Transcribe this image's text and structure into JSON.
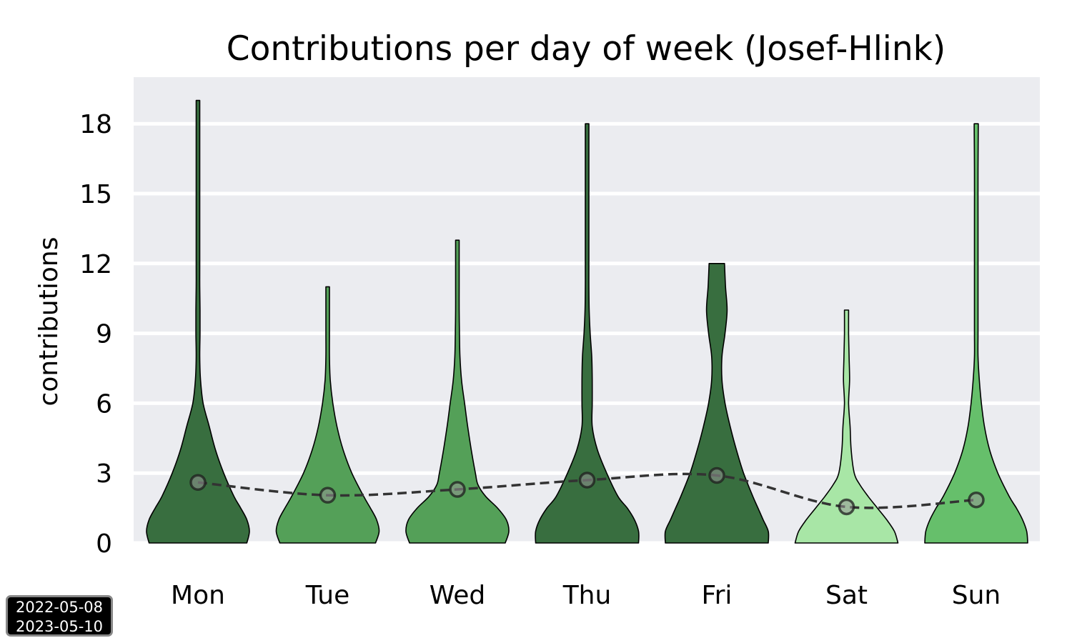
{
  "chart_data": {
    "type": "violin",
    "title": "Contributions per day of week (Josef-Hlink)",
    "xlabel": "",
    "ylabel": "contributions",
    "categories": [
      "Mon",
      "Tue",
      "Wed",
      "Thu",
      "Fri",
      "Sat",
      "Sun"
    ],
    "yticks": [
      "0",
      "3",
      "6",
      "9",
      "12",
      "15",
      "18"
    ],
    "ylim": [
      0,
      20
    ],
    "grid": "horizontal",
    "background": "#ebecf0",
    "series": [
      {
        "category": "Mon",
        "color": "#386e3f",
        "mean": 2.6,
        "max": 19,
        "profile": [
          [
            0,
            0.95
          ],
          [
            0.5,
            1.0
          ],
          [
            1,
            0.95
          ],
          [
            1.5,
            0.83
          ],
          [
            2,
            0.7
          ],
          [
            3,
            0.5
          ],
          [
            4,
            0.34
          ],
          [
            5,
            0.22
          ],
          [
            6,
            0.1
          ],
          [
            7,
            0.05
          ],
          [
            8,
            0.03
          ],
          [
            9,
            0.04
          ],
          [
            10,
            0.04
          ],
          [
            11,
            0.02
          ],
          [
            12,
            0.02
          ],
          [
            14,
            0.015
          ],
          [
            16,
            0.015
          ],
          [
            18,
            0.015
          ],
          [
            19,
            0.015
          ]
        ]
      },
      {
        "category": "Tue",
        "color": "#54a058",
        "mean": 2.05,
        "max": 11,
        "profile": [
          [
            0,
            0.93
          ],
          [
            0.5,
            1.0
          ],
          [
            1,
            0.95
          ],
          [
            1.5,
            0.83
          ],
          [
            2,
            0.7
          ],
          [
            3,
            0.47
          ],
          [
            4,
            0.3
          ],
          [
            5,
            0.18
          ],
          [
            6,
            0.1
          ],
          [
            7,
            0.05
          ],
          [
            8,
            0.03
          ],
          [
            9,
            0.03
          ],
          [
            10,
            0.03
          ],
          [
            11,
            0.03
          ]
        ]
      },
      {
        "category": "Wed",
        "color": "#54a058",
        "mean": 2.3,
        "max": 13,
        "profile": [
          [
            0,
            0.93
          ],
          [
            0.5,
            1.0
          ],
          [
            1,
            0.95
          ],
          [
            1.5,
            0.78
          ],
          [
            2,
            0.55
          ],
          [
            2.5,
            0.4
          ],
          [
            3,
            0.35
          ],
          [
            4,
            0.27
          ],
          [
            5,
            0.2
          ],
          [
            6,
            0.14
          ],
          [
            7,
            0.08
          ],
          [
            8,
            0.05
          ],
          [
            9,
            0.04
          ],
          [
            10,
            0.03
          ],
          [
            11,
            0.03
          ],
          [
            12,
            0.03
          ],
          [
            13,
            0.03
          ]
        ]
      },
      {
        "category": "Thu",
        "color": "#386e3f",
        "mean": 2.7,
        "max": 18,
        "profile": [
          [
            0,
            1.0
          ],
          [
            0.5,
            1.0
          ],
          [
            1,
            0.92
          ],
          [
            1.5,
            0.78
          ],
          [
            2,
            0.6
          ],
          [
            3,
            0.38
          ],
          [
            4,
            0.2
          ],
          [
            5,
            0.1
          ],
          [
            6,
            0.1
          ],
          [
            7,
            0.1
          ],
          [
            8,
            0.09
          ],
          [
            9,
            0.06
          ],
          [
            10,
            0.04
          ],
          [
            11,
            0.02
          ],
          [
            12,
            0.01
          ],
          [
            14,
            0.005
          ],
          [
            16,
            0.01
          ],
          [
            18,
            0.03
          ]
        ]
      },
      {
        "category": "Fri",
        "color": "#386e3f",
        "mean": 2.9,
        "max": 12,
        "profile": [
          [
            0,
            1.0
          ],
          [
            0.5,
            1.0
          ],
          [
            1,
            0.9
          ],
          [
            1.5,
            0.8
          ],
          [
            2,
            0.7
          ],
          [
            3,
            0.52
          ],
          [
            4,
            0.38
          ],
          [
            5,
            0.26
          ],
          [
            6,
            0.16
          ],
          [
            7,
            0.1
          ],
          [
            8,
            0.1
          ],
          [
            9,
            0.16
          ],
          [
            10,
            0.2
          ],
          [
            11,
            0.17
          ],
          [
            12,
            0.15
          ]
        ]
      },
      {
        "category": "Sat",
        "color": "#a8e6a6",
        "mean": 1.55,
        "max": 10,
        "profile": [
          [
            0,
            1.0
          ],
          [
            0.5,
            0.93
          ],
          [
            1,
            0.78
          ],
          [
            1.5,
            0.6
          ],
          [
            2,
            0.42
          ],
          [
            2.5,
            0.26
          ],
          [
            3,
            0.15
          ],
          [
            4,
            0.09
          ],
          [
            5,
            0.07
          ],
          [
            6,
            0.04
          ],
          [
            7,
            0.06
          ],
          [
            8,
            0.05
          ],
          [
            9,
            0.04
          ],
          [
            10,
            0.04
          ]
        ]
      },
      {
        "category": "Sun",
        "color": "#66bf6b",
        "mean": 1.85,
        "max": 18,
        "profile": [
          [
            0,
            1.0
          ],
          [
            0.5,
            0.98
          ],
          [
            1,
            0.9
          ],
          [
            1.5,
            0.78
          ],
          [
            2,
            0.64
          ],
          [
            3,
            0.42
          ],
          [
            4,
            0.26
          ],
          [
            5,
            0.16
          ],
          [
            6,
            0.1
          ],
          [
            7,
            0.06
          ],
          [
            8,
            0.03
          ],
          [
            9,
            0.015
          ],
          [
            10,
            0.008
          ],
          [
            12,
            0.004
          ],
          [
            14,
            0.004
          ],
          [
            16,
            0.004
          ],
          [
            18,
            0.04
          ]
        ]
      }
    ],
    "trend_line": {
      "style": "dashed",
      "color": "#333333"
    }
  },
  "date_range": {
    "start": "2022-05-08",
    "end": "2023-05-10"
  }
}
